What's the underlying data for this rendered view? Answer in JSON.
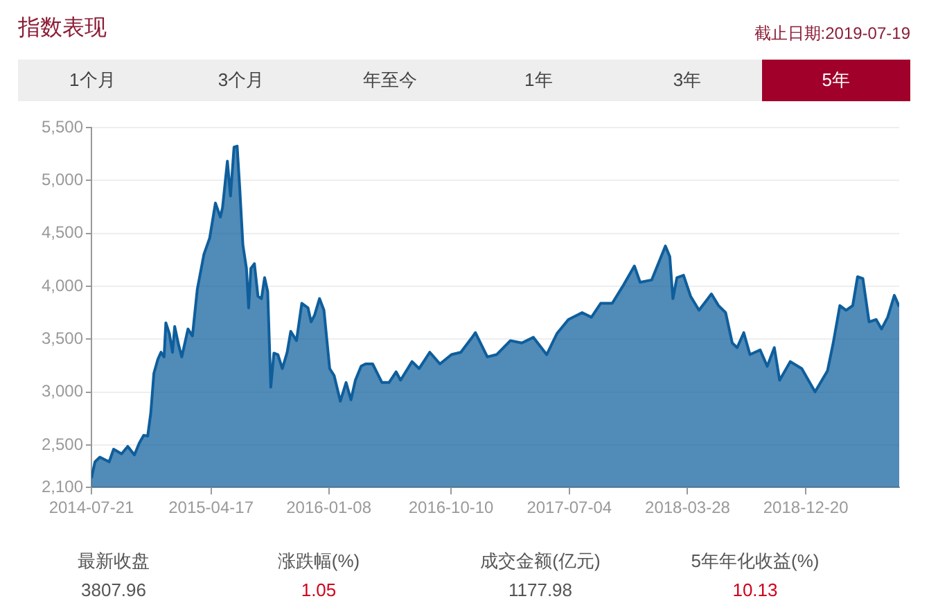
{
  "chart_data": {
    "type": "area",
    "title": "指数表现",
    "subtitle": "截止日期:2019-07-19",
    "annotations": [
      "1个月",
      "3个月",
      "年至今",
      "1年",
      "3年",
      "5年",
      "最新收盘",
      "3807.96",
      "涨跌幅(%)",
      "1.05",
      "成交金额(亿元)",
      "1177.98",
      "5年年化收益(%)",
      "10.13"
    ],
    "x": [
      "2014-07-21",
      "2014-07-29",
      "2014-08-09",
      "2014-08-30",
      "2014-09-09",
      "2014-09-27",
      "2014-10-11",
      "2014-10-26",
      "2014-11-06",
      "2014-11-16",
      "2014-11-25",
      "2014-12-02",
      "2014-12-09",
      "2014-12-18",
      "2014-12-25",
      "2015-01-01",
      "2015-01-05",
      "2015-01-13",
      "2015-01-20",
      "2015-01-25",
      "2015-02-03",
      "2015-02-10",
      "2015-02-24",
      "2015-03-06",
      "2015-03-17",
      "2015-04-01",
      "2015-04-14",
      "2015-04-27",
      "2015-05-08",
      "2015-05-13",
      "2015-05-24",
      "2015-05-31",
      "2015-06-08",
      "2015-06-15",
      "2015-06-21",
      "2015-06-28",
      "2015-07-06",
      "2015-07-11",
      "2015-07-16",
      "2015-07-24",
      "2015-08-01",
      "2015-08-09",
      "2015-08-16",
      "2015-08-23",
      "2015-08-30",
      "2015-09-06",
      "2015-09-15",
      "2015-09-25",
      "2015-10-06",
      "2015-10-14",
      "2015-10-27",
      "2015-11-08",
      "2015-11-22",
      "2015-11-29",
      "2015-12-07",
      "2015-12-18",
      "2015-12-28",
      "2016-01-10",
      "2016-01-20",
      "2016-02-03",
      "2016-02-16",
      "2016-02-27",
      "2016-03-08",
      "2016-03-21",
      "2016-03-31",
      "2016-04-16",
      "2016-05-07",
      "2016-05-23",
      "2016-06-08",
      "2016-06-18",
      "2016-07-14",
      "2016-07-30",
      "2016-08-23",
      "2016-09-15",
      "2016-10-11",
      "2016-11-01",
      "2016-11-25",
      "2016-12-04",
      "2016-12-31",
      "2017-01-21",
      "2017-02-21",
      "2017-03-19",
      "2017-04-14",
      "2017-05-14",
      "2017-06-06",
      "2017-07-02",
      "2017-08-02",
      "2017-08-23",
      "2017-09-13",
      "2017-10-09",
      "2017-11-04",
      "2017-11-28",
      "2017-12-11",
      "2018-01-06",
      "2018-02-06",
      "2018-02-16",
      "2018-02-23",
      "2018-03-04",
      "2018-03-19",
      "2018-04-04",
      "2018-04-23",
      "2018-05-21",
      "2018-06-06",
      "2018-06-22",
      "2018-07-07",
      "2018-07-18",
      "2018-08-02",
      "2018-08-16",
      "2018-09-08",
      "2018-09-24",
      "2018-10-10",
      "2018-10-22",
      "2018-11-15",
      "2018-12-11",
      "2019-01-10",
      "2019-02-07",
      "2019-02-20",
      "2019-03-07",
      "2019-03-21",
      "2019-04-05",
      "2019-04-16",
      "2019-04-28",
      "2019-05-12",
      "2019-05-28",
      "2019-06-09",
      "2019-06-23",
      "2019-07-08",
      "2019-07-19"
    ],
    "series": [
      {
        "color": "#0e5e9c",
        "values": [
          2188,
          2342,
          2386,
          2342,
          2461,
          2417,
          2488,
          2408,
          2519,
          2593,
          2585,
          2805,
          3179,
          3311,
          3377,
          3333,
          3655,
          3553,
          3377,
          3620,
          3443,
          3333,
          3597,
          3531,
          3972,
          4302,
          4456,
          4787,
          4654,
          4743,
          5183,
          4853,
          5315,
          5324,
          4919,
          4390,
          4170,
          3796,
          4170,
          4214,
          3906,
          3884,
          4082,
          3950,
          3047,
          3369,
          3355,
          3223,
          3377,
          3575,
          3487,
          3840,
          3796,
          3664,
          3730,
          3884,
          3774,
          3223,
          3157,
          2915,
          3091,
          2928,
          3113,
          3245,
          3267,
          3267,
          3091,
          3091,
          3192,
          3113,
          3289,
          3223,
          3377,
          3267,
          3355,
          3377,
          3509,
          3562,
          3333,
          3355,
          3487,
          3465,
          3518,
          3355,
          3553,
          3686,
          3752,
          3708,
          3840,
          3840,
          4016,
          4192,
          4038,
          4060,
          4381,
          4280,
          3884,
          4082,
          4104,
          3906,
          3774,
          3928,
          3818,
          3752,
          3465,
          3421,
          3562,
          3355,
          3399,
          3245,
          3421,
          3113,
          3289,
          3223,
          3003,
          3201,
          3465,
          3818,
          3774,
          3818,
          4091,
          4073,
          3664,
          3686,
          3597,
          3708,
          3915,
          3808
        ]
      }
    ],
    "xlim": [
      "2014-07-21",
      "2019-07-19"
    ],
    "xticks": [
      "2014-07-21",
      "2015-04-17",
      "2016-01-08",
      "2016-10-10",
      "2017-07-04",
      "2018-03-28",
      "2018-12-20"
    ],
    "ylim": [
      2100,
      5500
    ],
    "yticks": [
      {
        "value": 2100,
        "label": "2,100"
      },
      {
        "value": 2500,
        "label": "2,500"
      },
      {
        "value": 3000,
        "label": "3,000"
      },
      {
        "value": 3500,
        "label": "3,500"
      },
      {
        "value": 4000,
        "label": "4,000"
      },
      {
        "value": 4500,
        "label": "4,500"
      },
      {
        "value": 5000,
        "label": "5,000"
      },
      {
        "value": 5500,
        "label": "5,500"
      }
    ],
    "grid": "y",
    "legend": false,
    "marker": "none",
    "line_style": "solid"
  }
}
